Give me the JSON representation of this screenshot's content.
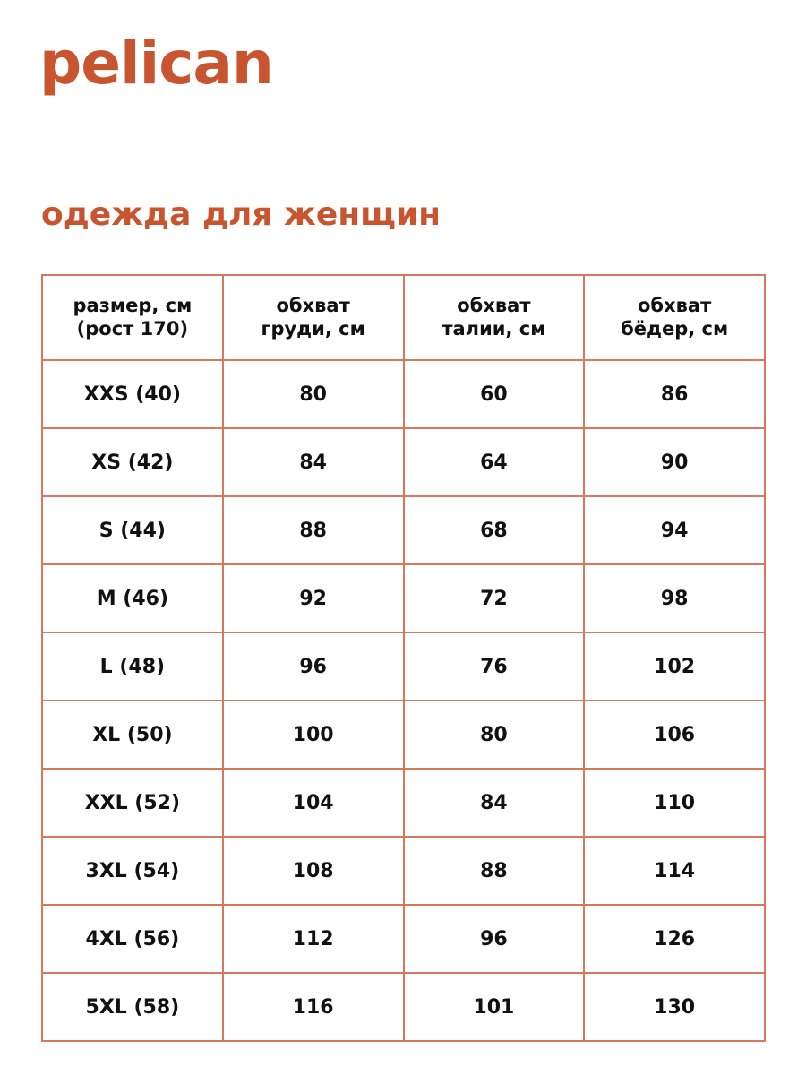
{
  "brand": {
    "logo": "pelican",
    "color": "#c85530"
  },
  "title": "одежда для женщин",
  "table": {
    "headers": [
      [
        "размер, см",
        "(рост 170)"
      ],
      [
        "обхват",
        "груди, см"
      ],
      [
        "обхват",
        "талии, см"
      ],
      [
        "обхват",
        "бёдер, см"
      ]
    ],
    "rows": [
      [
        "XXS (40)",
        "80",
        "60",
        "86"
      ],
      [
        "XS (42)",
        "84",
        "64",
        "90"
      ],
      [
        "S (44)",
        "88",
        "68",
        "94"
      ],
      [
        "M (46)",
        "92",
        "72",
        "98"
      ],
      [
        "L (48)",
        "96",
        "76",
        "102"
      ],
      [
        "XL (50)",
        "100",
        "80",
        "106"
      ],
      [
        "XXL (52)",
        "104",
        "84",
        "110"
      ],
      [
        "3XL (54)",
        "108",
        "88",
        "114"
      ],
      [
        "4XL (56)",
        "112",
        "96",
        "126"
      ],
      [
        "5XL (58)",
        "116",
        "101",
        "130"
      ]
    ],
    "border_color": "#d9775a"
  }
}
